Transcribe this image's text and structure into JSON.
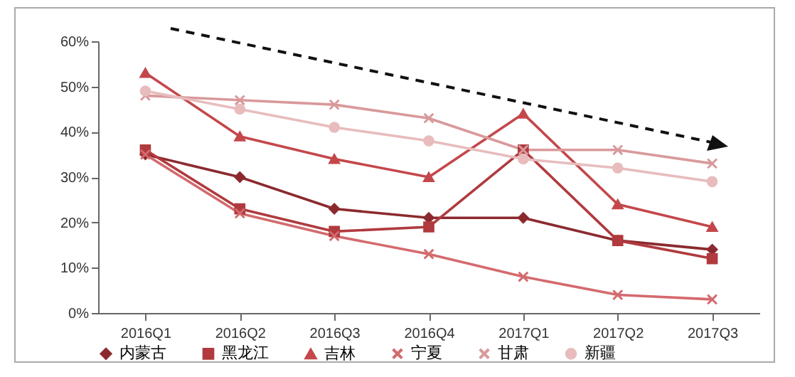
{
  "chart_data": {
    "type": "line",
    "categories": [
      "2016Q1",
      "2016Q2",
      "2016Q3",
      "2016Q4",
      "2017Q1",
      "2017Q2",
      "2017Q3"
    ],
    "ylim": [
      0,
      60
    ],
    "yticks": [
      {
        "value": 0,
        "label": "0%"
      },
      {
        "value": 10,
        "label": "10%"
      },
      {
        "value": 20,
        "label": "20%"
      },
      {
        "value": 30,
        "label": "30%"
      },
      {
        "value": 40,
        "label": "40%"
      },
      {
        "value": 50,
        "label": "50%"
      },
      {
        "value": 60,
        "label": "60%"
      }
    ],
    "grid": false,
    "legend": "bottom",
    "series": [
      {
        "name": "内蒙古",
        "color": "#8b2a2e",
        "marker": "diamond",
        "values": [
          35,
          30,
          23,
          21,
          21,
          16,
          14
        ]
      },
      {
        "name": "黑龙江",
        "color": "#b03a3e",
        "marker": "square",
        "values": [
          36,
          23,
          18,
          19,
          36,
          16,
          12
        ]
      },
      {
        "name": "吉林",
        "color": "#c4474b",
        "marker": "triangle",
        "values": [
          53,
          39,
          34,
          30,
          44,
          24,
          19
        ]
      },
      {
        "name": "宁夏",
        "color": "#d46a6e",
        "marker": "cross",
        "values": [
          35,
          22,
          17,
          13,
          8,
          4,
          3
        ]
      },
      {
        "name": "甘肃",
        "color": "#d9999b",
        "marker": "cross",
        "values": [
          48,
          47,
          46,
          43,
          36,
          36,
          33
        ]
      },
      {
        "name": "新疆",
        "color": "#e8bcbd",
        "marker": "circle",
        "values": [
          49,
          45,
          41,
          38,
          34,
          32,
          29
        ]
      }
    ]
  }
}
